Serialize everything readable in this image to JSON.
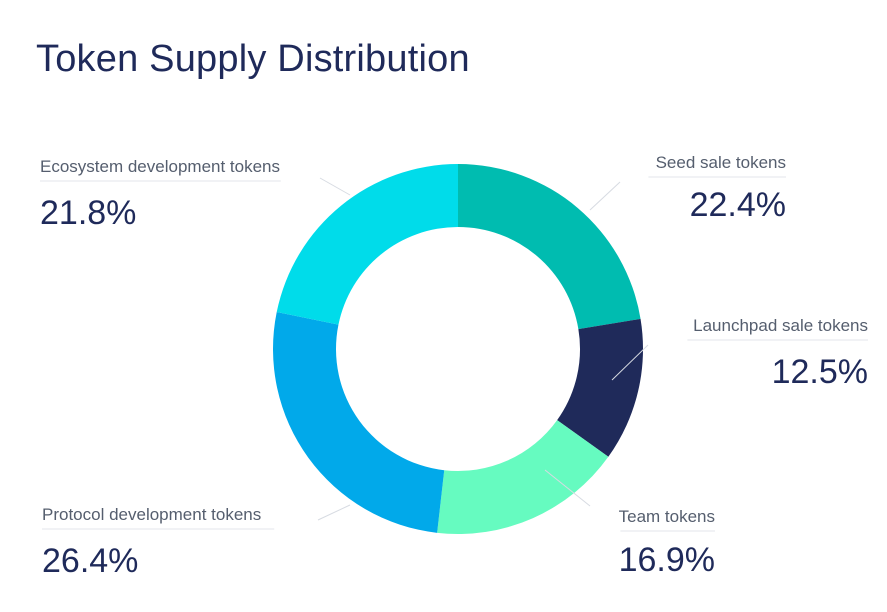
{
  "chart_data": {
    "type": "pie",
    "title": "Token Supply Distribution",
    "donut": true,
    "slices": [
      {
        "label": "Seed sale tokens",
        "value": 22.4,
        "display": "22.4%",
        "color": "#00bcb0"
      },
      {
        "label": "Launchpad sale tokens",
        "value": 12.5,
        "display": "12.5%",
        "color": "#1f2a5a"
      },
      {
        "label": "Team tokens",
        "value": 16.9,
        "display": "16.9%",
        "color": "#66fbc0"
      },
      {
        "label": "Protocol development tokens",
        "value": 26.4,
        "display": "26.4%",
        "color": "#01a9ea"
      },
      {
        "label": "Ecosystem development tokens",
        "value": 21.8,
        "display": "21.8%",
        "color": "#00dcea"
      }
    ]
  }
}
